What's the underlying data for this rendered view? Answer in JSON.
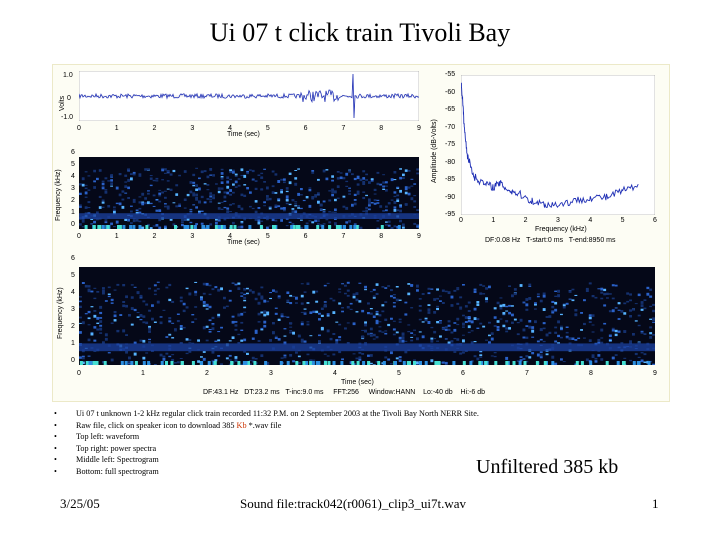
{
  "slide_title": "Ui 07 t click train Tivoli Bay",
  "waveform": {
    "y_label": "Volts",
    "y_ticks": [
      "1.0",
      "0",
      "-1.0"
    ],
    "x_ticks": [
      "0",
      "1",
      "2",
      "3",
      "4",
      "5",
      "6",
      "7",
      "8",
      "9"
    ],
    "x_label": "Time (sec)",
    "colors": {
      "trace": "#1f2fb5"
    }
  },
  "spectrogram_small": {
    "y_label": "Frequency (kHz)",
    "y_ticks": [
      "6",
      "5",
      "4",
      "3",
      "2",
      "1",
      "0"
    ],
    "x_ticks": [
      "0",
      "1",
      "2",
      "3",
      "4",
      "5",
      "6",
      "7",
      "8",
      "9"
    ],
    "x_label": "Time (sec)"
  },
  "power_spectrum": {
    "y_label": "Amplitude (dB-Volts)",
    "y_ticks": [
      "-55",
      "-60",
      "-65",
      "-70",
      "-75",
      "-80",
      "-85",
      "-90",
      "-95"
    ],
    "x_ticks": [
      "0",
      "1",
      "2",
      "3",
      "4",
      "5",
      "6"
    ],
    "x_label": "Frequency (kHz)",
    "stats": [
      "DF:0.08 Hz",
      "T-start:0 ms",
      "T-end:8950 ms"
    ],
    "colors": {
      "trace": "#1f2fb5"
    }
  },
  "spectrogram_full": {
    "y_label": "Frequency (kHz)",
    "y_ticks": [
      "6",
      "5",
      "4",
      "3",
      "2",
      "1",
      "0"
    ],
    "x_ticks": [
      "0",
      "1",
      "2",
      "3",
      "4",
      "5",
      "6",
      "7",
      "8",
      "9"
    ],
    "x_label": "Time (sec)",
    "stats": [
      "DF:43.1 Hz",
      "DT:23.2 ms",
      "T-inc:9.0 ms",
      "FFT:256",
      "Window:HANN",
      "Lo:-40 db",
      "Hi:-6 db"
    ]
  },
  "bullets": {
    "b1": "Ui 07 t unknown 1-2 kHz regular click train recorded  11:32 P.M. on 2 September 2003 at the Tivoli Bay North NERR Site.",
    "b2_pre": "Raw file, click on speaker icon to download 385 ",
    "b2_kb": "Kb",
    "b2_post": " *.wav file",
    "b3": "Top left: waveform",
    "b4": "Top right: power spectra",
    "b5": "Middle left: Spectrogram",
    "b6": "Bottom: full spectrogram"
  },
  "unfiltered_label": "Unfiltered 385 kb",
  "footer": {
    "date": "3/25/05",
    "sound_file": "Sound file:track042(r0061)_clip3_ui7t.wav",
    "page": "1"
  }
}
